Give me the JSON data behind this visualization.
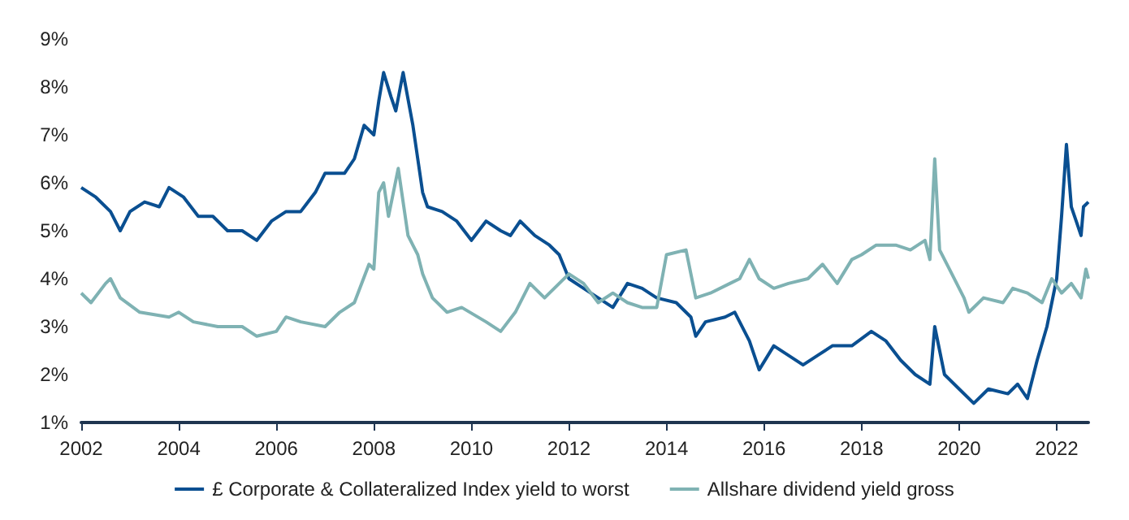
{
  "chart_data": {
    "type": "line",
    "legend": "bottom",
    "grid": false,
    "marker": "none",
    "line_style": "solid",
    "xlim": [
      2002,
      2022.65
    ],
    "xticks": [
      2002,
      2004,
      2006,
      2008,
      2010,
      2012,
      2014,
      2016,
      2018,
      2020,
      2022
    ],
    "ylim": [
      1,
      9
    ],
    "yticks": [
      {
        "value": 1,
        "label": "1%"
      },
      {
        "value": 2,
        "label": "2%"
      },
      {
        "value": 3,
        "label": "3%"
      },
      {
        "value": 4,
        "label": "4%"
      },
      {
        "value": 5,
        "label": "5%"
      },
      {
        "value": 6,
        "label": "6%"
      },
      {
        "value": 7,
        "label": "7%"
      },
      {
        "value": 8,
        "label": "8%"
      },
      {
        "value": 9,
        "label": "9%"
      }
    ],
    "series": [
      {
        "name": "£ Corporate & Collateralized Index yield to worst",
        "color": "#0a4f91",
        "x": [
          2002.0,
          2002.3,
          2002.6,
          2002.8,
          2003.0,
          2003.3,
          2003.6,
          2003.8,
          2004.1,
          2004.4,
          2004.7,
          2005.0,
          2005.3,
          2005.6,
          2005.9,
          2006.2,
          2006.5,
          2006.8,
          2007.0,
          2007.4,
          2007.6,
          2007.8,
          2008.0,
          2008.1,
          2008.2,
          2008.35,
          2008.45,
          2008.6,
          2008.8,
          2009.0,
          2009.1,
          2009.4,
          2009.7,
          2010.0,
          2010.3,
          2010.6,
          2010.8,
          2011.0,
          2011.3,
          2011.6,
          2011.8,
          2012.0,
          2012.3,
          2012.6,
          2012.9,
          2013.2,
          2013.5,
          2013.8,
          2014.2,
          2014.5,
          2014.6,
          2014.8,
          2015.2,
          2015.4,
          2015.7,
          2015.9,
          2016.2,
          2016.5,
          2016.8,
          2017.1,
          2017.4,
          2017.8,
          2018.2,
          2018.5,
          2018.8,
          2019.1,
          2019.4,
          2019.5,
          2019.7,
          2020.0,
          2020.3,
          2020.6,
          2021.0,
          2021.2,
          2021.4,
          2021.6,
          2021.8,
          2022.0,
          2022.1,
          2022.2,
          2022.3,
          2022.4,
          2022.5,
          2022.55,
          2022.65
        ],
        "values": [
          5.9,
          5.7,
          5.4,
          5.0,
          5.4,
          5.6,
          5.5,
          5.9,
          5.7,
          5.3,
          5.3,
          5.0,
          5.0,
          4.8,
          5.2,
          5.4,
          5.4,
          5.8,
          6.2,
          6.2,
          6.5,
          7.2,
          7.0,
          7.7,
          8.3,
          7.8,
          7.5,
          8.3,
          7.2,
          5.8,
          5.5,
          5.4,
          5.2,
          4.8,
          5.2,
          5.0,
          4.9,
          5.2,
          4.9,
          4.7,
          4.5,
          4.0,
          3.8,
          3.6,
          3.4,
          3.9,
          3.8,
          3.6,
          3.5,
          3.2,
          2.8,
          3.1,
          3.2,
          3.3,
          2.7,
          2.1,
          2.6,
          2.4,
          2.2,
          2.4,
          2.6,
          2.6,
          2.9,
          2.7,
          2.3,
          2.0,
          1.8,
          3.0,
          2.0,
          1.7,
          1.4,
          1.7,
          1.6,
          1.8,
          1.5,
          2.3,
          3.0,
          4.0,
          5.3,
          6.8,
          5.5,
          5.2,
          4.9,
          5.5,
          5.6
        ]
      },
      {
        "name": "Allshare dividend yield gross",
        "color": "#7fb2b3",
        "x": [
          2002.0,
          2002.2,
          2002.5,
          2002.6,
          2002.8,
          2003.2,
          2003.8,
          2004.0,
          2004.3,
          2004.8,
          2005.3,
          2005.6,
          2006.0,
          2006.2,
          2006.5,
          2007.0,
          2007.3,
          2007.6,
          2007.9,
          2008.0,
          2008.1,
          2008.2,
          2008.3,
          2008.5,
          2008.7,
          2008.9,
          2009.0,
          2009.2,
          2009.5,
          2009.8,
          2010.3,
          2010.6,
          2010.9,
          2011.2,
          2011.5,
          2011.8,
          2012.0,
          2012.3,
          2012.6,
          2012.9,
          2013.2,
          2013.5,
          2013.8,
          2014.0,
          2014.4,
          2014.6,
          2014.9,
          2015.3,
          2015.5,
          2015.7,
          2015.9,
          2016.2,
          2016.5,
          2016.9,
          2017.2,
          2017.5,
          2017.8,
          2018.0,
          2018.3,
          2018.7,
          2019.0,
          2019.3,
          2019.4,
          2019.5,
          2019.6,
          2019.8,
          2020.1,
          2020.2,
          2020.5,
          2020.9,
          2021.1,
          2021.4,
          2021.7,
          2021.9,
          2022.1,
          2022.3,
          2022.5,
          2022.6,
          2022.65
        ],
        "values": [
          3.7,
          3.5,
          3.9,
          4.0,
          3.6,
          3.3,
          3.2,
          3.3,
          3.1,
          3.0,
          3.0,
          2.8,
          2.9,
          3.2,
          3.1,
          3.0,
          3.3,
          3.5,
          4.3,
          4.2,
          5.8,
          6.0,
          5.3,
          6.3,
          4.9,
          4.5,
          4.1,
          3.6,
          3.3,
          3.4,
          3.1,
          2.9,
          3.3,
          3.9,
          3.6,
          3.9,
          4.1,
          3.9,
          3.5,
          3.7,
          3.5,
          3.4,
          3.4,
          4.5,
          4.6,
          3.6,
          3.7,
          3.9,
          4.0,
          4.4,
          4.0,
          3.8,
          3.9,
          4.0,
          4.3,
          3.9,
          4.4,
          4.5,
          4.7,
          4.7,
          4.6,
          4.8,
          4.4,
          6.5,
          4.6,
          4.2,
          3.6,
          3.3,
          3.6,
          3.5,
          3.8,
          3.7,
          3.5,
          4.0,
          3.7,
          3.9,
          3.6,
          4.2,
          4.0
        ]
      }
    ]
  }
}
